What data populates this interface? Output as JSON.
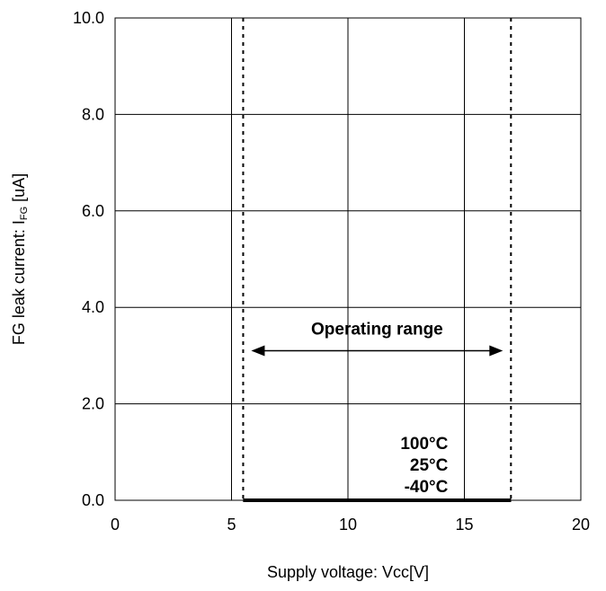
{
  "chart_data": {
    "type": "line",
    "title": "",
    "xlabel": "Supply voltage: Vcc[V]",
    "ylabel_main": "FG leak current: I",
    "ylabel_sub": "FG",
    "ylabel_unit": " [uA]",
    "xlim": [
      0,
      20
    ],
    "ylim": [
      0,
      10
    ],
    "x_ticks": [
      0,
      5,
      10,
      15,
      20
    ],
    "x_tick_labels": [
      "0",
      "5",
      "10",
      "15",
      "20"
    ],
    "y_ticks": [
      0,
      2,
      4,
      6,
      8,
      10
    ],
    "y_tick_labels": [
      "0.0",
      "2.0",
      "4.0",
      "6.0",
      "8.0",
      "10.0"
    ],
    "grid": true,
    "series": [
      {
        "name": "100°C",
        "x": [
          5.5,
          17.0
        ],
        "y": [
          0.0,
          0.0
        ]
      },
      {
        "name": "25°C",
        "x": [
          5.5,
          17.0
        ],
        "y": [
          0.0,
          0.0
        ]
      },
      {
        "name": "-40°C",
        "x": [
          5.5,
          17.0
        ],
        "y": [
          0.0,
          0.0
        ]
      }
    ],
    "operating_range": {
      "label": "Operating range",
      "x_min": 5.5,
      "x_max": 17.0,
      "arrow_y": 3.1
    }
  }
}
